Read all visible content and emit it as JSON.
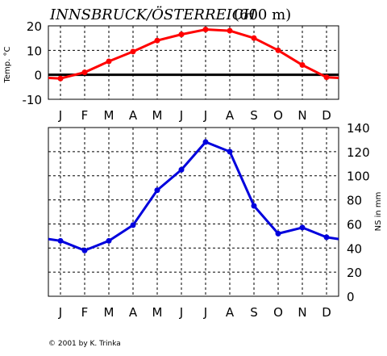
{
  "chart_data": [
    {
      "type": "line",
      "title": "INNSBRUCK/ÖSTERREICH",
      "title_unit": "(600 m)",
      "ylabel": "Temp. °C",
      "categories": [
        "J",
        "F",
        "M",
        "A",
        "M",
        "J",
        "J",
        "A",
        "S",
        "O",
        "N",
        "D"
      ],
      "series": [
        {
          "color": "#ff0000",
          "values": [
            -1.5,
            1.0,
            5.5,
            9.5,
            14.0,
            16.5,
            18.5,
            18.0,
            15.0,
            10.0,
            4.0,
            -1.0
          ]
        }
      ],
      "ylim": [
        -10,
        20
      ],
      "yticks": [
        "-10",
        "0",
        "10",
        "20"
      ],
      "zero_line": true,
      "grid": true
    },
    {
      "type": "line",
      "ylabel": "NS in mm",
      "categories": [
        "J",
        "F",
        "M",
        "A",
        "M",
        "J",
        "J",
        "A",
        "S",
        "O",
        "N",
        "D"
      ],
      "series": [
        {
          "color": "#0000dd",
          "values": [
            46,
            38,
            46,
            59,
            88,
            105,
            128,
            120,
            75,
            52,
            57,
            49
          ]
        }
      ],
      "ylim": [
        0,
        140
      ],
      "yticks": [
        "0",
        "20",
        "40",
        "60",
        "80",
        "100",
        "120",
        "140"
      ],
      "y_axis_side": "right",
      "grid": true
    }
  ],
  "credit": "© 2001 by K. Trinka"
}
